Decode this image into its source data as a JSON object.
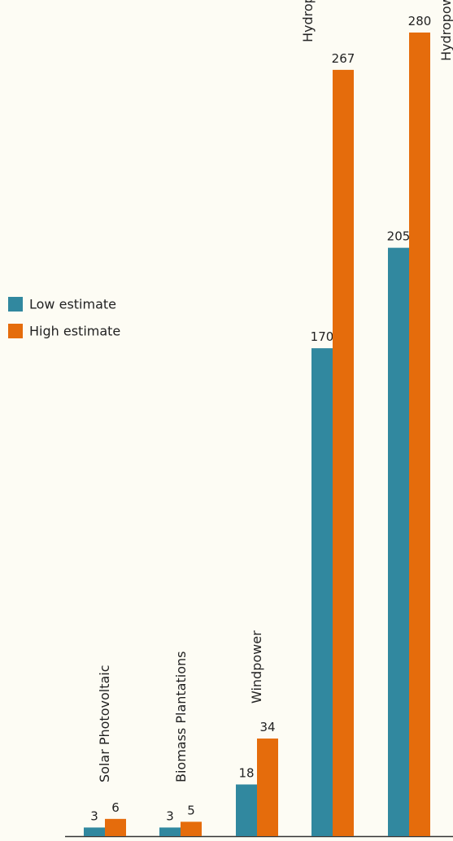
{
  "chart_data": {
    "type": "bar",
    "categories": [
      "Solar Photovoltaic",
      "Biomass Plantations",
      "Windpower",
      "Hydropower Run-of-river",
      "Hydropower with reservoir"
    ],
    "series": [
      {
        "name": "Low estimate",
        "color": "#31889f",
        "values": [
          3,
          3,
          18,
          170,
          205
        ]
      },
      {
        "name": "High estimate",
        "color": "#e56c0c",
        "values": [
          6,
          5,
          34,
          267,
          280
        ]
      }
    ]
  }
}
